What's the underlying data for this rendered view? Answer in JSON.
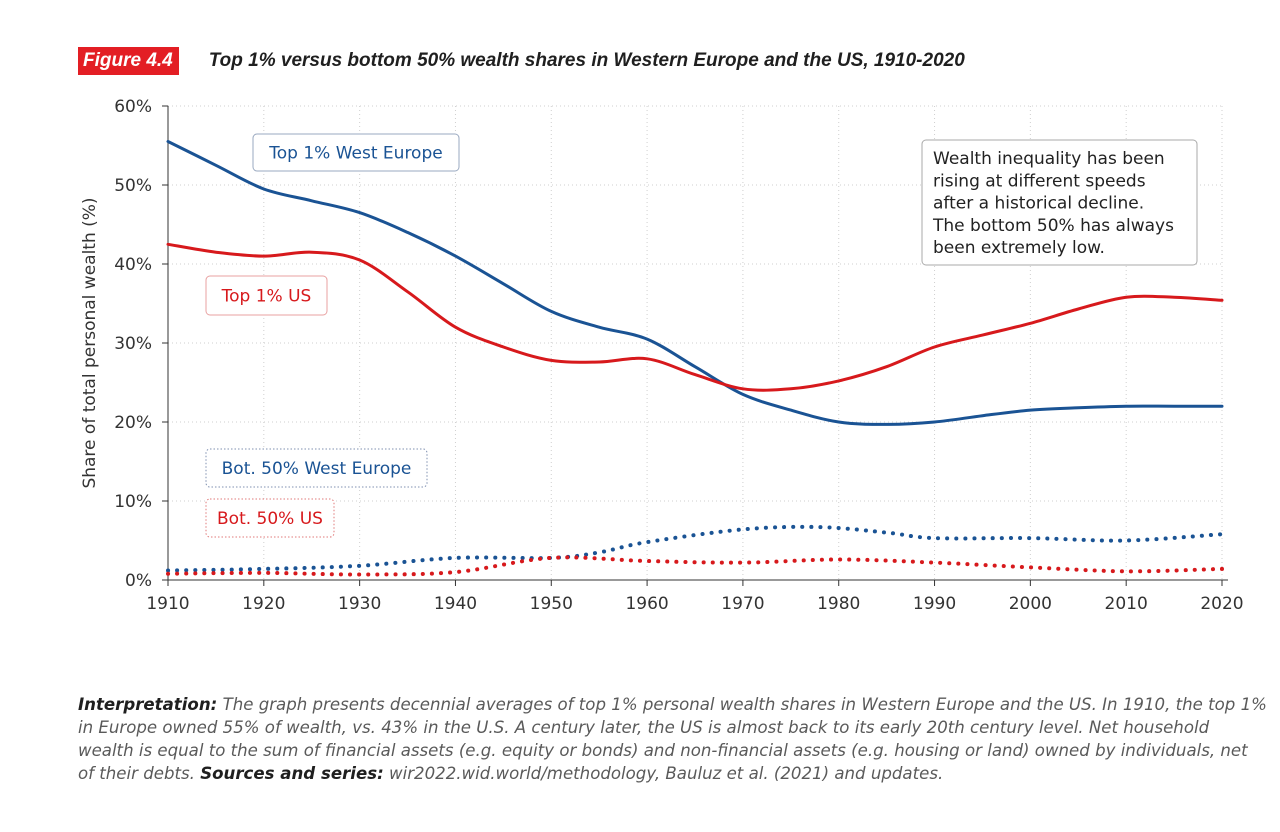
{
  "figure": {
    "badge": "Figure 4.4",
    "title": "Top 1% versus bottom 50% wealth shares in Western Europe and the US, 1910-2020"
  },
  "chart_data": {
    "type": "line",
    "ylabel": "Share of total personal wealth (%)",
    "xlabel": "",
    "ylim": [
      0,
      60
    ],
    "xlim": [
      1910,
      2020
    ],
    "y_ticks": [
      "0%",
      "10%",
      "20%",
      "30%",
      "40%",
      "50%",
      "60%"
    ],
    "y_tick_values": [
      0,
      10,
      20,
      30,
      40,
      50,
      60
    ],
    "x_ticks": [
      1910,
      1920,
      1930,
      1940,
      1950,
      1960,
      1970,
      1980,
      1990,
      2000,
      2010,
      2020
    ],
    "grid": true,
    "series": [
      {
        "name": "Top 1% West Europe",
        "style": "solid",
        "color": "#1a5394",
        "x": [
          1910,
          1915,
          1920,
          1925,
          1930,
          1935,
          1940,
          1945,
          1950,
          1955,
          1960,
          1965,
          1970,
          1975,
          1980,
          1985,
          1990,
          1995,
          2000,
          2005,
          2010,
          2015,
          2020
        ],
        "values": [
          55.5,
          52.5,
          49.5,
          48.0,
          46.5,
          44.0,
          41.0,
          37.5,
          34.0,
          32.0,
          30.5,
          27.0,
          23.5,
          21.5,
          20.0,
          19.7,
          20.0,
          20.8,
          21.5,
          21.8,
          22.0,
          22.0,
          22.0
        ]
      },
      {
        "name": "Top 1% US",
        "style": "solid",
        "color": "#d7191c",
        "x": [
          1910,
          1915,
          1920,
          1925,
          1930,
          1935,
          1940,
          1945,
          1950,
          1955,
          1960,
          1965,
          1970,
          1975,
          1980,
          1985,
          1990,
          1995,
          2000,
          2005,
          2010,
          2015,
          2020
        ],
        "values": [
          42.5,
          41.5,
          41.0,
          41.5,
          40.5,
          36.5,
          32.0,
          29.5,
          27.8,
          27.6,
          28.0,
          26.0,
          24.2,
          24.2,
          25.2,
          27.0,
          29.5,
          31.0,
          32.5,
          34.3,
          35.8,
          35.8,
          35.4
        ]
      },
      {
        "name": "Bot. 50% West Europe",
        "style": "dotted",
        "color": "#1a5394",
        "x": [
          1910,
          1920,
          1930,
          1940,
          1950,
          1955,
          1960,
          1970,
          1978,
          1985,
          1990,
          2000,
          2010,
          2020
        ],
        "values": [
          1.2,
          1.4,
          1.8,
          2.8,
          2.8,
          3.5,
          4.8,
          6.4,
          6.7,
          6.0,
          5.3,
          5.3,
          5.0,
          5.8
        ]
      },
      {
        "name": "Bot. 50% US",
        "style": "dotted",
        "color": "#d7191c",
        "x": [
          1910,
          1920,
          1930,
          1940,
          1950,
          1960,
          1970,
          1980,
          1990,
          2000,
          2010,
          2020
        ],
        "values": [
          0.8,
          0.9,
          0.7,
          1.0,
          2.8,
          2.4,
          2.2,
          2.6,
          2.2,
          1.6,
          1.1,
          1.4
        ]
      }
    ],
    "annotation": "Wealth inequality has been rising at different speeds after a historical decline. The bottom 50% has always been extremely low.",
    "annotation_lines": [
      "Wealth inequality has been",
      "rising at different speeds",
      "after a historical decline.",
      "The bottom 50% has always",
      "been extremely low."
    ]
  },
  "note": {
    "interp_label": "Interpretation:",
    "interp_text": "The graph presents decennial averages of top 1% personal wealth shares in Western Europe and the US. In 1910, the top 1% in Europe owned 55% of wealth, vs. 43% in the U.S. A century later, the US is almost back to its early 20th century level. Net household wealth is equal to the sum of financial assets (e.g. equity or bonds) and non-financial assets (e.g. housing or land) owned by individuals, net of their debts.",
    "sources_label": "Sources and series:",
    "sources_text": "wir2022.wid.world/methodology, Bauluz et al. (2021) and updates."
  }
}
